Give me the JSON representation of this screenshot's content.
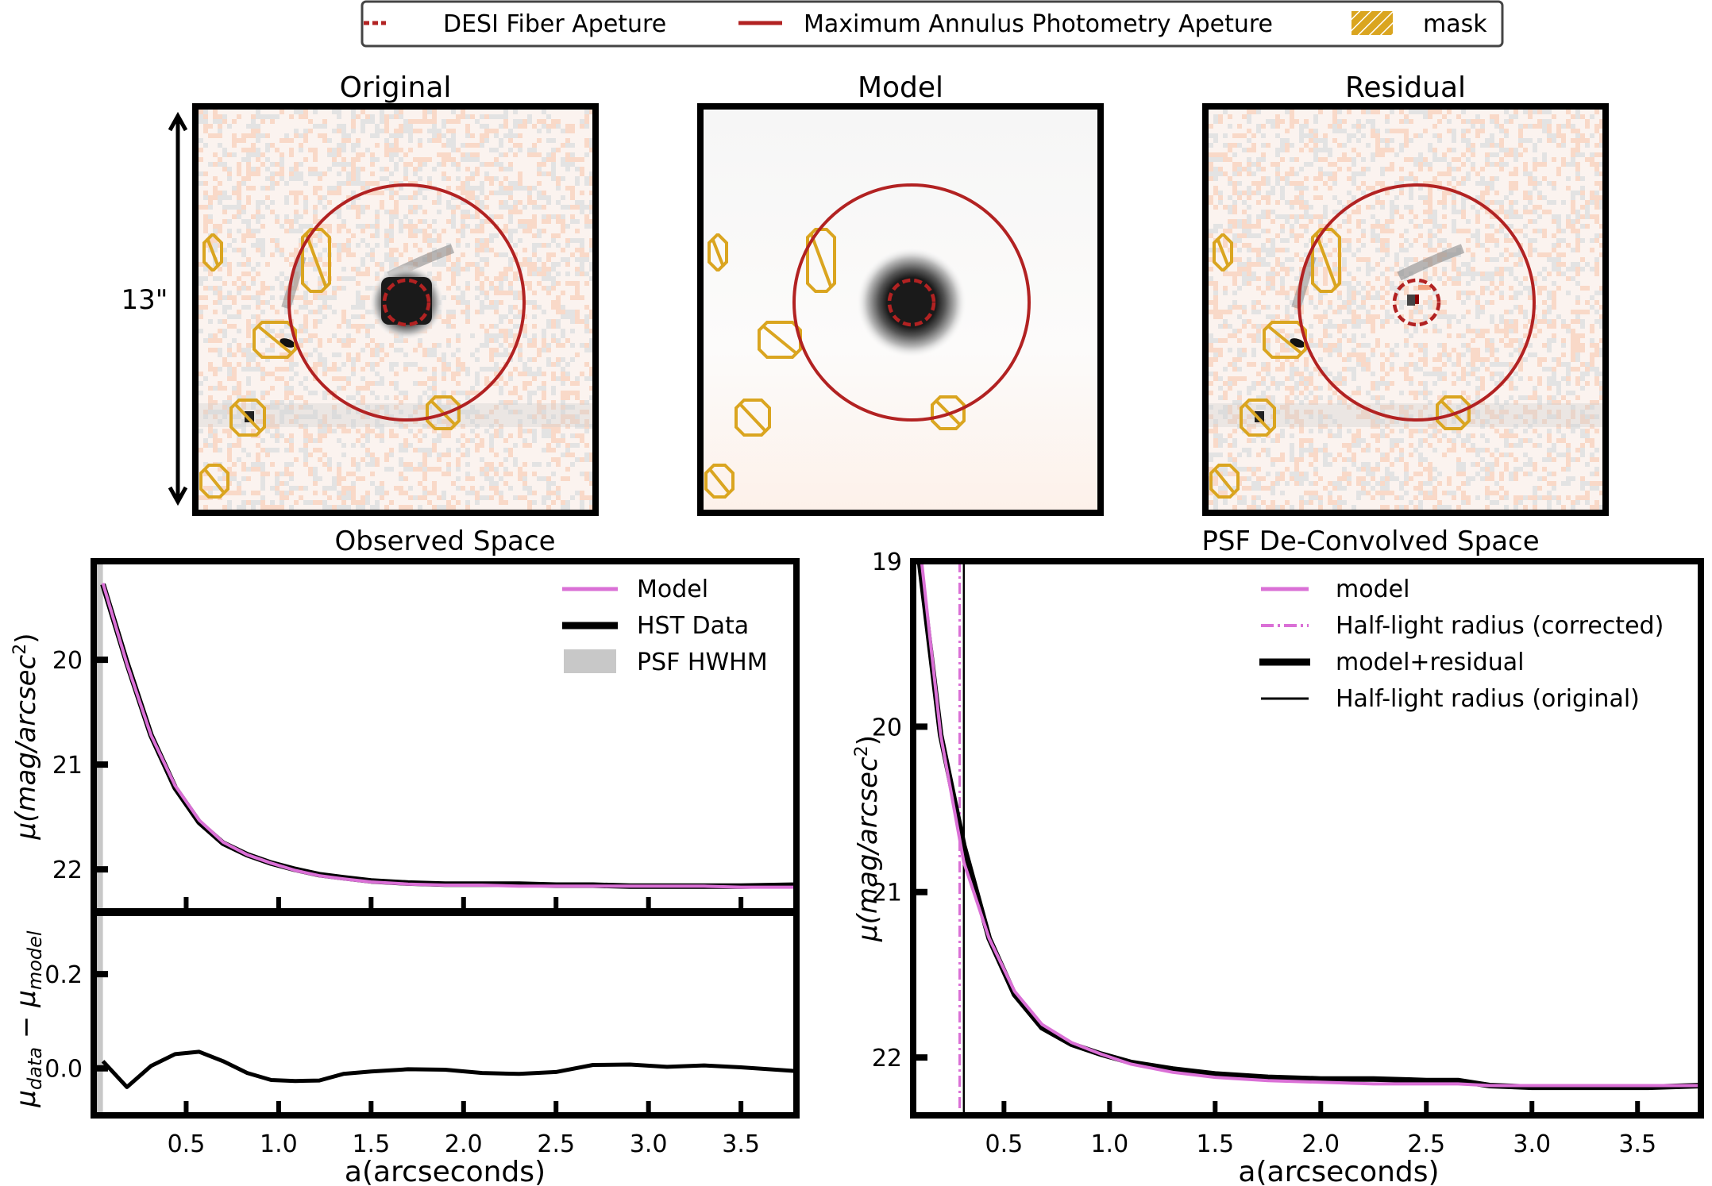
{
  "figure": {
    "legend": {
      "items": [
        {
          "label": "DESI Fiber Apeture",
          "style": "dashed",
          "color": "#b22222"
        },
        {
          "label": "Maximum Annulus Photometry Apeture",
          "style": "solid",
          "color": "#b22222"
        },
        {
          "label": "mask",
          "style": "hatch",
          "color": "#daa520"
        }
      ]
    },
    "scale_bar_label": "13\"",
    "image_panels": [
      {
        "title": "Original"
      },
      {
        "title": "Model"
      },
      {
        "title": "Residual"
      }
    ],
    "colors": {
      "aperture": "#b22222",
      "mask": "#daa520",
      "model_line": "#da70d6",
      "data_line": "#000000",
      "psf_band": "#c8c8c8"
    }
  },
  "chart_data": [
    {
      "type": "line",
      "title": "Observed Space",
      "xlabel": "a(arcseconds)",
      "ylabel": "μ(mag/arcsec²)",
      "ylabel_parts": {
        "base": "μ(mag/arcsec",
        "sup": "2",
        "end": ")"
      },
      "xlim": [
        0.0,
        3.8
      ],
      "ylim": [
        22.4,
        19.06
      ],
      "y_inverted": true,
      "yticks": [
        20,
        21,
        22
      ],
      "ytick_labels": [
        "20",
        "21",
        "22"
      ],
      "xticks": [
        0.5,
        1.0,
        1.5,
        2.0,
        2.5,
        3.0,
        3.5
      ],
      "legend_position": "upper-right",
      "psf_hwhm": {
        "label": "PSF HWHM",
        "x_range": [
          0.0,
          0.05
        ]
      },
      "series": [
        {
          "name": "HST Data",
          "x": [
            0.05,
            0.18,
            0.31,
            0.44,
            0.57,
            0.7,
            0.83,
            0.96,
            1.09,
            1.22,
            1.35,
            1.5,
            1.7,
            1.9,
            2.1,
            2.3,
            2.5,
            2.7,
            2.9,
            3.1,
            3.3,
            3.5,
            3.8
          ],
          "y": [
            19.28,
            20.03,
            20.72,
            21.22,
            21.55,
            21.75,
            21.86,
            21.94,
            22.0,
            22.05,
            22.08,
            22.11,
            22.13,
            22.14,
            22.14,
            22.14,
            22.15,
            22.15,
            22.16,
            22.16,
            22.16,
            22.16,
            22.15
          ]
        },
        {
          "name": "Model",
          "x": [
            0.05,
            0.18,
            0.31,
            0.44,
            0.57,
            0.7,
            0.83,
            0.96,
            1.09,
            1.22,
            1.35,
            1.5,
            1.7,
            1.9,
            2.1,
            2.3,
            2.5,
            2.7,
            2.9,
            3.1,
            3.3,
            3.5,
            3.8
          ],
          "y": [
            19.27,
            20.04,
            20.72,
            21.2,
            21.53,
            21.74,
            21.86,
            21.94,
            22.01,
            22.06,
            22.09,
            22.12,
            22.14,
            22.15,
            22.15,
            22.16,
            22.16,
            22.16,
            22.16,
            22.16,
            22.16,
            22.17,
            22.17
          ]
        }
      ]
    },
    {
      "type": "line",
      "title": "",
      "xlabel": "a(arcseconds)",
      "ylabel": "μ_data − μ_model",
      "ylabel_parts": {
        "mu": "μ",
        "sub1": "data",
        "minus": " − ",
        "sub2": "model"
      },
      "xlim": [
        0.0,
        3.8
      ],
      "ylim": [
        -0.1,
        0.33
      ],
      "yticks": [
        0.0,
        0.2
      ],
      "ytick_labels": [
        "0.0",
        "0.2"
      ],
      "xticks": [
        0.5,
        1.0,
        1.5,
        2.0,
        2.5,
        3.0,
        3.5
      ],
      "xtick_labels": [
        "0.5",
        "1.0",
        "1.5",
        "2.0",
        "2.5",
        "3.0",
        "3.5"
      ],
      "psf_hwhm": {
        "x_range": [
          0.0,
          0.05
        ]
      },
      "series": [
        {
          "name": "residual",
          "x": [
            0.05,
            0.18,
            0.31,
            0.44,
            0.57,
            0.7,
            0.83,
            0.96,
            1.09,
            1.22,
            1.35,
            1.5,
            1.7,
            1.9,
            2.1,
            2.3,
            2.5,
            2.7,
            2.9,
            3.1,
            3.3,
            3.5,
            3.8
          ],
          "y": [
            0.015,
            -0.04,
            0.005,
            0.03,
            0.035,
            0.015,
            -0.01,
            -0.025,
            -0.027,
            -0.026,
            -0.012,
            -0.007,
            -0.002,
            -0.003,
            -0.01,
            -0.012,
            -0.008,
            0.007,
            0.008,
            0.003,
            0.006,
            0.002,
            -0.006
          ]
        }
      ]
    },
    {
      "type": "line",
      "title": "PSF De-Convolved Space",
      "xlabel": "a(arcseconds)",
      "ylabel": "μ(mag/arcsec²)",
      "ylabel_parts": {
        "base": "μ(mag/arcsec",
        "sup": "2",
        "end": ")"
      },
      "xlim": [
        0.07,
        3.8
      ],
      "ylim": [
        22.35,
        19.0
      ],
      "y_inverted": true,
      "yticks": [
        19,
        20,
        21,
        22
      ],
      "ytick_labels": [
        "19",
        "20",
        "21",
        "22"
      ],
      "xticks": [
        0.5,
        1.0,
        1.5,
        2.0,
        2.5,
        3.0,
        3.5
      ],
      "xtick_labels": [
        "0.5",
        "1.0",
        "1.5",
        "2.0",
        "2.5",
        "3.0",
        "3.5"
      ],
      "legend_position": "upper-right",
      "vlines": [
        {
          "name": "Half-light radius (corrected)",
          "x": 0.29,
          "style": "dashdot",
          "color": "#da70d6"
        },
        {
          "name": "Half-light radius (original)",
          "x": 0.31,
          "style": "solid-thin",
          "color": "#000000"
        }
      ],
      "series": [
        {
          "name": "model+residual",
          "x": [
            0.1,
            0.2,
            0.31,
            0.43,
            0.55,
            0.68,
            0.82,
            0.96,
            1.1,
            1.3,
            1.5,
            1.75,
            2.0,
            2.25,
            2.5,
            2.65,
            2.8,
            3.0,
            3.3,
            3.55,
            3.8
          ],
          "y": [
            19.0,
            20.05,
            20.72,
            21.28,
            21.62,
            21.82,
            21.92,
            21.98,
            22.03,
            22.07,
            22.1,
            22.12,
            22.13,
            22.13,
            22.14,
            22.14,
            22.17,
            22.18,
            22.18,
            22.18,
            22.17
          ]
        },
        {
          "name": "model",
          "x": [
            0.11,
            0.2,
            0.31,
            0.43,
            0.55,
            0.68,
            0.82,
            0.96,
            1.1,
            1.3,
            1.5,
            1.75,
            2.0,
            2.25,
            2.5,
            2.65,
            2.8,
            3.0,
            3.3,
            3.55,
            3.8
          ],
          "y": [
            19.0,
            20.05,
            20.82,
            21.28,
            21.6,
            21.8,
            21.91,
            21.98,
            22.04,
            22.09,
            22.12,
            22.14,
            22.15,
            22.16,
            22.16,
            22.16,
            22.17,
            22.17,
            22.17,
            22.17,
            22.17
          ]
        }
      ]
    }
  ],
  "observed_legend": [
    {
      "label": "Model",
      "kind": "line-pink"
    },
    {
      "label": "HST Data",
      "kind": "line-black-thick"
    },
    {
      "label": "PSF HWHM",
      "kind": "patch-gray"
    }
  ],
  "deconvolved_legend": [
    {
      "label": "model",
      "kind": "line-pink"
    },
    {
      "label": "Half-light radius (corrected)",
      "kind": "dashdot-pink"
    },
    {
      "label": "model+residual",
      "kind": "line-black-thick"
    },
    {
      "label": "Half-light radius (original)",
      "kind": "line-black-thin"
    }
  ]
}
